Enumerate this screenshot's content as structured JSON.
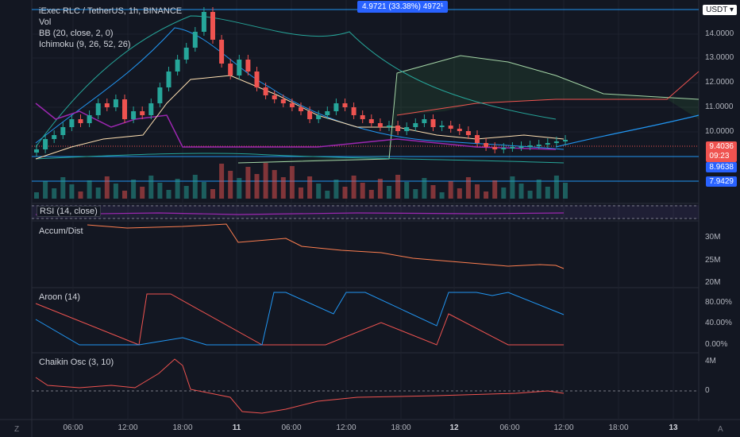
{
  "header": {
    "symbol_line": "iExec RLC / TetherUS, 1h, BINANCE",
    "indicators": [
      "Vol",
      "BB (20, close, 2, 0)",
      "Ichimoku (9, 26, 52, 26)"
    ],
    "measure_label": "4.9721 (33.38%) 4972¹",
    "currency": "USDT ▾"
  },
  "panes": {
    "rsi_title": "RSI (14, close)",
    "ad_title": "Accum/Dist",
    "aroon_title": "Aroon (14)",
    "chaikin_title": "Chaikin Osc (3, 10)"
  },
  "price_axis": {
    "ticks": [
      "14.0000",
      "13.0000",
      "12.0000",
      "11.0000",
      "10.0000"
    ],
    "current_price": "9.4036",
    "countdown": "09:23",
    "level_1": "8.9638",
    "level_2": "7.9429",
    "top_level": "14.xxxx"
  },
  "ad_axis": [
    "30M",
    "25M",
    "20M"
  ],
  "aroon_axis": [
    "80.00%",
    "40.00%",
    "0.00%"
  ],
  "chaikin_axis": [
    "4M",
    "0"
  ],
  "time_axis": [
    {
      "label": "06:00",
      "bold": false
    },
    {
      "label": "12:00",
      "bold": false
    },
    {
      "label": "18:00",
      "bold": false
    },
    {
      "label": "11",
      "bold": true
    },
    {
      "label": "06:00",
      "bold": false
    },
    {
      "label": "12:00",
      "bold": false
    },
    {
      "label": "18:00",
      "bold": false
    },
    {
      "label": "12",
      "bold": true
    },
    {
      "label": "06:00",
      "bold": false
    },
    {
      "label": "12:00",
      "bold": false
    },
    {
      "label": "18:00",
      "bold": false
    },
    {
      "label": "13",
      "bold": true
    }
  ],
  "corner": {
    "left": "Z",
    "right": "A"
  },
  "colors": {
    "up": "#26a69a",
    "down": "#ef5350",
    "bb": "#2196f3",
    "ichimoku_base": "#ffe0b2",
    "price_line": "#2196f3",
    "aroon_up": "#2196f3",
    "aroon_down": "#ef5350",
    "rsi": "#9c27b0"
  }
}
